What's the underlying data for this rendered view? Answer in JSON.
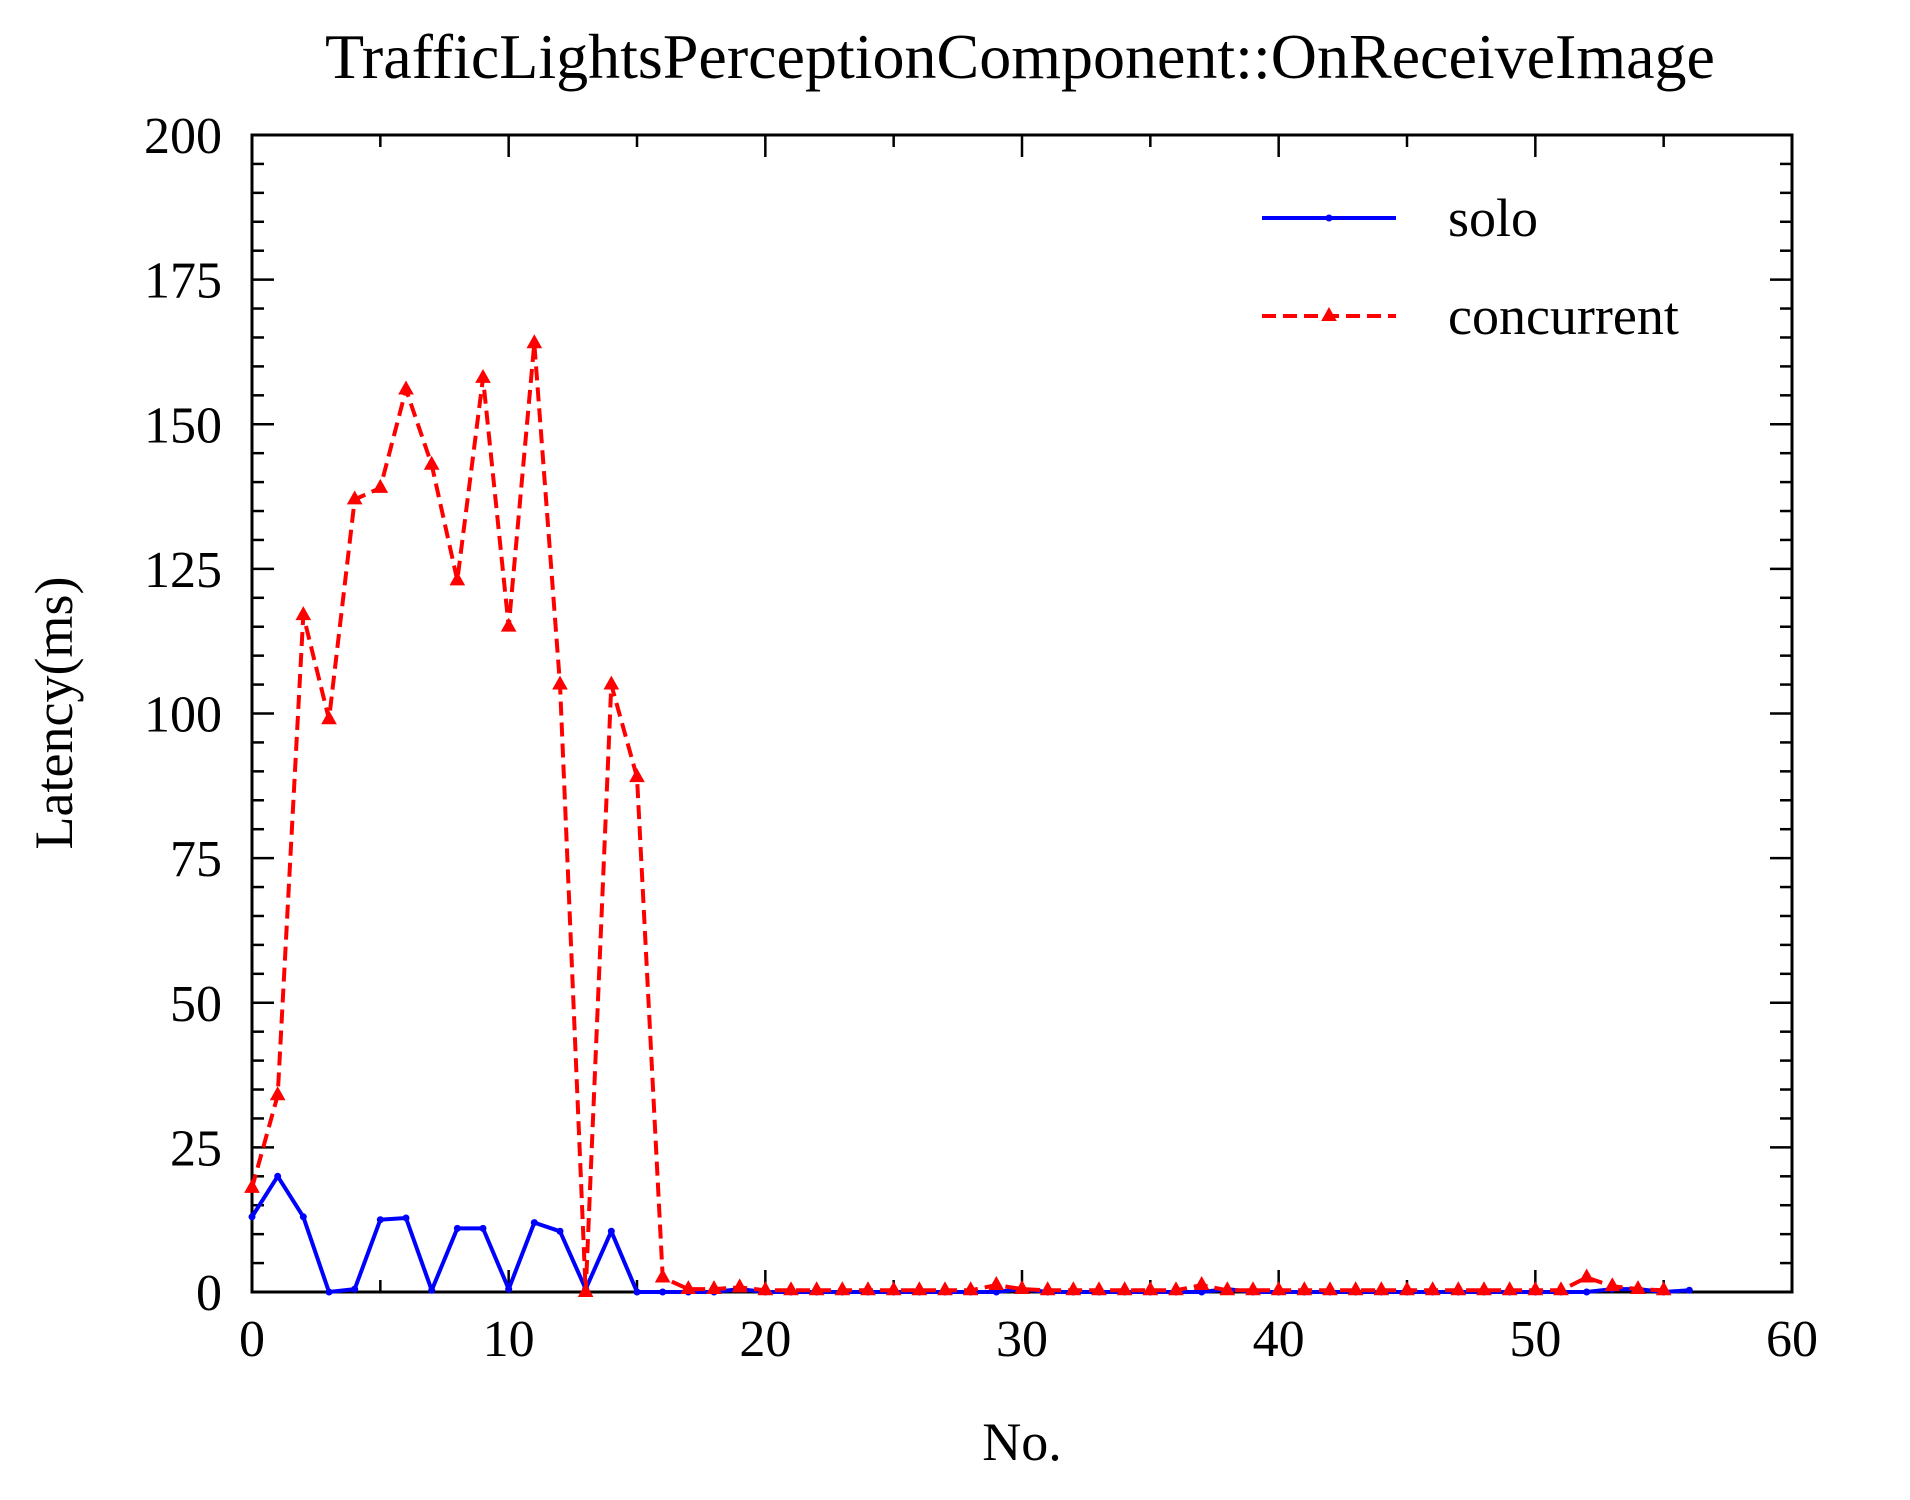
{
  "chart_data": {
    "type": "line",
    "title": "TrafficLightsPerceptionComponent::OnReceiveImage",
    "xlabel": "No.",
    "ylabel": "Latency(ms)",
    "xlim": [
      0,
      60
    ],
    "ylim": [
      0,
      200
    ],
    "xticks": [
      0,
      10,
      20,
      30,
      40,
      50,
      60
    ],
    "yticks": [
      0,
      25,
      50,
      75,
      100,
      125,
      150,
      175,
      200
    ],
    "grid": false,
    "legend_position": "top-right",
    "series": [
      {
        "name": "solo",
        "color": "#0000ff",
        "line_style": "solid",
        "marker": "point",
        "x": [
          0,
          1,
          2,
          3,
          4,
          5,
          6,
          7,
          8,
          9,
          10,
          11,
          12,
          13,
          14,
          15,
          16,
          17,
          18,
          19,
          20,
          21,
          22,
          23,
          24,
          25,
          26,
          27,
          28,
          29,
          30,
          31,
          32,
          33,
          34,
          35,
          36,
          37,
          38,
          39,
          40,
          41,
          42,
          43,
          44,
          45,
          46,
          47,
          48,
          49,
          50,
          51,
          52,
          53,
          54,
          55,
          56
        ],
        "y": [
          13,
          20,
          13,
          0,
          0.5,
          12.5,
          12.8,
          0.3,
          11,
          11,
          0.5,
          12,
          10.5,
          0.5,
          10.5,
          0,
          0,
          0,
          0,
          0.5,
          0,
          0,
          0,
          0,
          0,
          0,
          0,
          0,
          0,
          0,
          0.5,
          0,
          0,
          0,
          0,
          0,
          0,
          0,
          0.5,
          0,
          0,
          0,
          0,
          0,
          0,
          0,
          0,
          0,
          0,
          0,
          0,
          0,
          0,
          0.5,
          0.5,
          0,
          0.3
        ]
      },
      {
        "name": "concurrent",
        "color": "#ff0000",
        "line_style": "dashed",
        "marker": "triangle",
        "x": [
          0,
          1,
          2,
          3,
          4,
          5,
          6,
          7,
          8,
          9,
          10,
          11,
          12,
          13,
          14,
          15,
          16,
          17,
          18,
          19,
          20,
          21,
          22,
          23,
          24,
          25,
          26,
          27,
          28,
          29,
          30,
          31,
          32,
          33,
          34,
          35,
          36,
          37,
          38,
          39,
          40,
          41,
          42,
          43,
          44,
          45,
          46,
          47,
          48,
          49,
          50,
          51,
          52,
          53,
          54,
          55
        ],
        "y": [
          18,
          34,
          117,
          99,
          137,
          139,
          156,
          143,
          123,
          158,
          115,
          164,
          105,
          0,
          105,
          89,
          2.5,
          0.5,
          0.5,
          0.8,
          0.3,
          0.3,
          0.3,
          0.3,
          0.3,
          0.3,
          0.3,
          0.3,
          0.3,
          1.2,
          0.5,
          0.3,
          0.3,
          0.3,
          0.3,
          0.3,
          0.3,
          1.2,
          0.3,
          0.3,
          0.3,
          0.3,
          0.3,
          0.3,
          0.3,
          0.3,
          0.3,
          0.3,
          0.3,
          0.3,
          0.3,
          0.3,
          2.5,
          1,
          0.5,
          0.3
        ]
      }
    ]
  }
}
